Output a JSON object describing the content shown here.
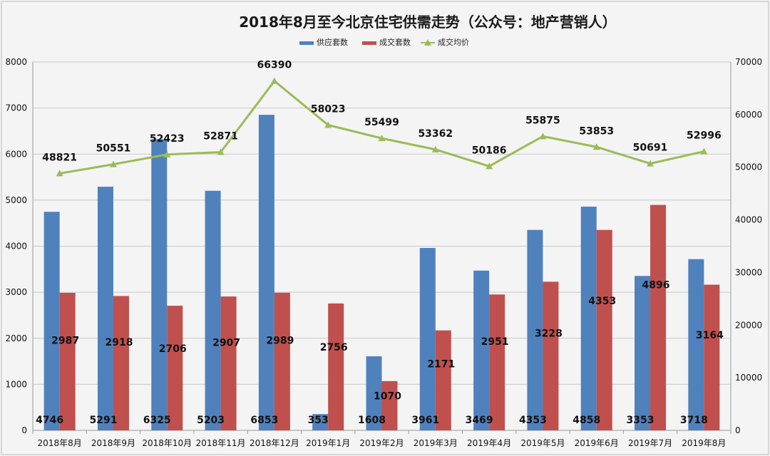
{
  "chart_data": {
    "type": "bar",
    "title": "2018年8月至今北京住宅供需走势（公众号：地产营销人）",
    "categories": [
      "2018年8月",
      "2018年9月",
      "2018年10月",
      "2018年11月",
      "2018年12月",
      "2019年1月",
      "2019年2月",
      "2019年3月",
      "2019年4月",
      "2019年5月",
      "2019年6月",
      "2019年7月",
      "2019年8月"
    ],
    "series": [
      {
        "name": "供应套数",
        "type": "bar",
        "axis": "left",
        "color": "#4f81bd",
        "values": [
          4746,
          5291,
          6325,
          5203,
          6853,
          353,
          1608,
          3961,
          3469,
          4353,
          4858,
          3353,
          3718
        ]
      },
      {
        "name": "成交套数",
        "type": "bar",
        "axis": "left",
        "color": "#c0504d",
        "values": [
          2987,
          2918,
          2706,
          2907,
          2989,
          2756,
          1070,
          2171,
          2951,
          3228,
          4353,
          4896,
          3164
        ]
      },
      {
        "name": "成交均价",
        "type": "line",
        "axis": "right",
        "color": "#9bbb59",
        "marker": "triangle",
        "values": [
          48821,
          50551,
          52423,
          52871,
          66390,
          58023,
          55499,
          53362,
          50186,
          55875,
          53853,
          50691,
          52996
        ]
      }
    ],
    "ylim_left": [
      0,
      8000
    ],
    "ylim_right": [
      0,
      70000
    ],
    "yticks_left": [
      0,
      1000,
      2000,
      3000,
      4000,
      5000,
      6000,
      7000,
      8000
    ],
    "yticks_right": [
      0,
      10000,
      20000,
      30000,
      40000,
      50000,
      60000,
      70000
    ],
    "grid": true,
    "legend_position": "top"
  }
}
